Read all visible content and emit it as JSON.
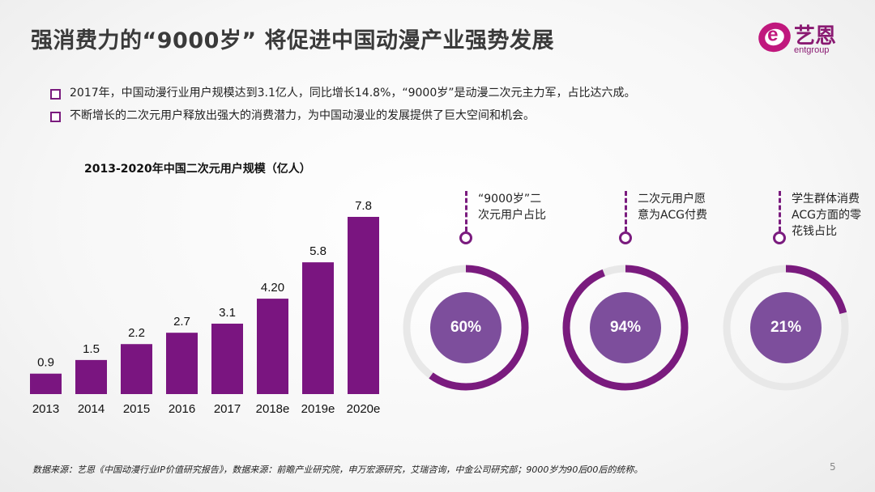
{
  "title": "强消费力的“9000岁” 将促进中国动漫产业强势发展",
  "logo": {
    "cn": "艺恩",
    "en": "entgroup",
    "letter": "e"
  },
  "bullets": [
    "2017年，中国动漫行业用户规模达到3.1亿人，同比增长14.8%，“9000岁”是动漫二次元主力军，占比达六成。",
    "不断增长的二次元用户释放出强大的消费潜力，为中国动漫业的发展提供了巨大空间和机会。"
  ],
  "chart_data": [
    {
      "type": "bar",
      "title": "2013-2020年中国二次元用户规模（亿人）",
      "categories": [
        "2013",
        "2014",
        "2015",
        "2016",
        "2017",
        "2018e",
        "2019e",
        "2020e"
      ],
      "values": [
        0.9,
        1.5,
        2.2,
        2.7,
        3.1,
        4.2,
        5.8,
        7.8
      ],
      "value_labels": [
        "0.9",
        "1.5",
        "2.2",
        "2.7",
        "3.1",
        "4.20",
        "5.8",
        "7.8"
      ],
      "xlabel": "",
      "ylabel": "",
      "ylim": [
        0,
        7.8
      ],
      "color": "#7a1580"
    },
    {
      "type": "pie",
      "items": [
        {
          "label": "“9000岁”二次元用户占比",
          "value": 60,
          "text": "60%"
        },
        {
          "label": "二次元用户愿意为ACG付费",
          "value": 94,
          "text": "94%"
        },
        {
          "label": "学生群体消费ACG方面的零花钱占比",
          "value": 21,
          "text": "21%"
        }
      ]
    }
  ],
  "callouts": [
    [
      "“9000岁”二",
      "次元用户占比"
    ],
    [
      "二次元用户愿",
      "意为ACG付费"
    ],
    [
      "学生群体消费",
      "ACG方面的零",
      "花钱占比"
    ]
  ],
  "colors": {
    "primary": "#7a1580",
    "ring": "#7a1b7e",
    "track": "#e8e8e8",
    "inner": "#7d4e9c"
  },
  "source": "数据来源：艺恩《中国动漫行业IP价值研究报告》，数据来源：前瞻产业研究院，申万宏源研究，艾瑞咨询，中金公司研究部；9000岁为90后00后的统称。",
  "page_number": "5"
}
